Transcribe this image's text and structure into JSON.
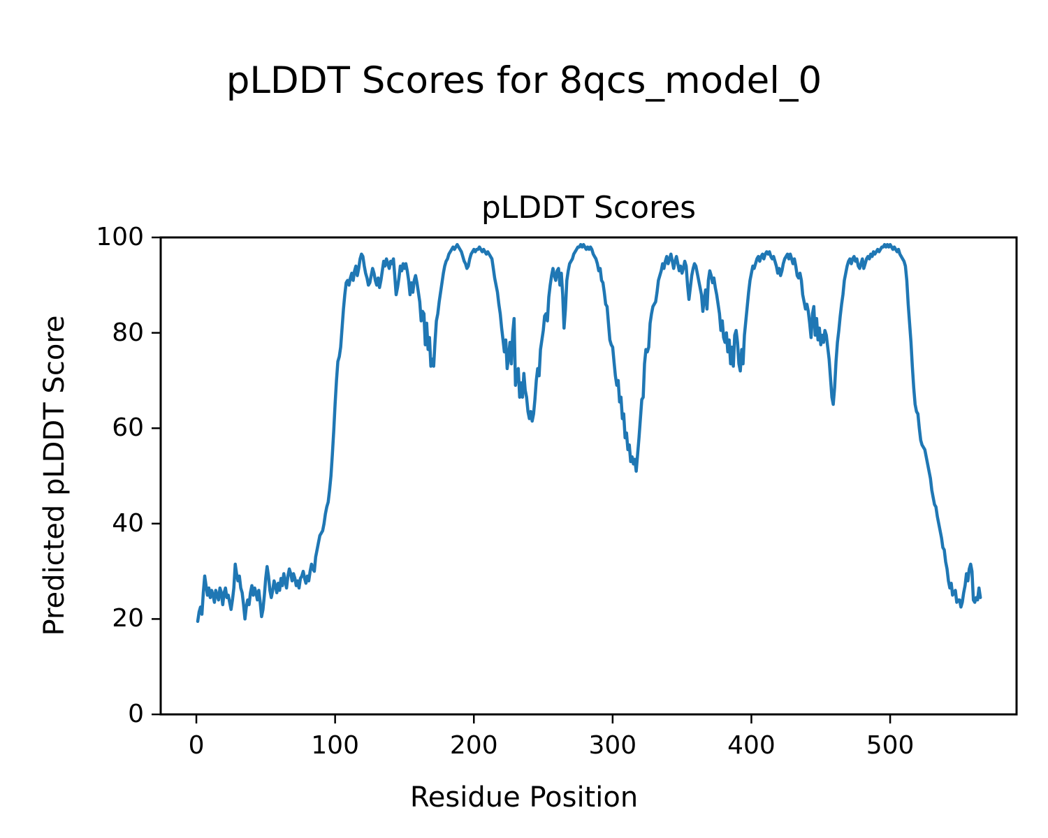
{
  "figure": {
    "suptitle": "pLDDT Scores for 8qcs_model_0",
    "axes_title": "pLDDT Scores",
    "xlabel": "Residue Position",
    "ylabel": "Predicted pLDDT Score"
  },
  "chart_data": {
    "type": "line",
    "title": "pLDDT Scores",
    "suptitle": "pLDDT Scores for 8qcs_model_0",
    "xlabel": "Residue Position",
    "ylabel": "Predicted pLDDT Score",
    "xlim": [
      -25.7,
      591.1
    ],
    "ylim": [
      0,
      100
    ],
    "x_ticks": [
      0,
      100,
      200,
      300,
      400,
      500
    ],
    "y_ticks": [
      0,
      20,
      40,
      60,
      80,
      100
    ],
    "grid": false,
    "legend": "none",
    "line_color": "#1f77b4",
    "series": [
      {
        "name": "pLDDT",
        "x_start": 1,
        "x_step": 1,
        "values": [
          19.5,
          21.5,
          22.5,
          21.0,
          25.5,
          29.0,
          27.0,
          25.0,
          26.5,
          24.5,
          26.0,
          25.0,
          23.5,
          26.0,
          25.0,
          24.0,
          26.5,
          25.5,
          23.0,
          25.5,
          26.5,
          24.5,
          25.0,
          23.5,
          22.0,
          24.0,
          26.5,
          31.5,
          29.5,
          28.0,
          29.0,
          26.5,
          25.5,
          23.0,
          20.0,
          22.5,
          24.0,
          23.0,
          25.5,
          27.0,
          25.0,
          26.5,
          25.5,
          24.0,
          26.0,
          23.5,
          20.5,
          22.0,
          25.0,
          28.5,
          31.0,
          29.0,
          26.0,
          24.5,
          26.0,
          28.0,
          27.0,
          25.5,
          27.5,
          26.0,
          28.5,
          27.0,
          29.5,
          28.0,
          26.5,
          29.0,
          30.5,
          29.5,
          28.0,
          29.5,
          28.5,
          27.0,
          28.0,
          26.5,
          28.5,
          29.0,
          30.0,
          28.5,
          27.5,
          29.0,
          28.0,
          30.0,
          31.5,
          30.5,
          30.0,
          33.0,
          34.5,
          36.0,
          37.5,
          38.0,
          38.5,
          40.0,
          42.0,
          43.5,
          44.5,
          47.0,
          50.0,
          54.5,
          59.5,
          65.0,
          70.0,
          74.0,
          75.0,
          77.0,
          81.0,
          85.0,
          88.0,
          90.5,
          91.0,
          90.0,
          91.5,
          92.5,
          91.0,
          93.0,
          94.0,
          92.0,
          93.5,
          95.5,
          96.5,
          96.0,
          94.0,
          92.5,
          91.5,
          90.0,
          90.5,
          92.0,
          93.5,
          92.5,
          91.0,
          90.0,
          91.5,
          89.5,
          91.0,
          93.0,
          95.0,
          94.0,
          95.5,
          94.5,
          93.5,
          95.0,
          94.5,
          95.5,
          92.0,
          88.0,
          89.5,
          91.5,
          94.0,
          93.0,
          94.5,
          93.5,
          94.5,
          93.0,
          91.0,
          88.0,
          90.5,
          88.5,
          91.0,
          92.0,
          90.5,
          88.5,
          86.5,
          82.5,
          84.5,
          84.0,
          77.5,
          82.0,
          76.5,
          79.0,
          73.0,
          74.5,
          73.0,
          78.0,
          82.5,
          84.0,
          86.5,
          88.5,
          90.5,
          92.5,
          94.0,
          95.0,
          95.5,
          96.5,
          97.0,
          97.5,
          98.0,
          97.5,
          98.0,
          98.5,
          98.0,
          97.5,
          97.0,
          96.0,
          95.0,
          94.5,
          93.5,
          94.0,
          95.5,
          96.5,
          97.0,
          97.5,
          97.0,
          97.5,
          97.5,
          98.0,
          97.5,
          97.0,
          97.5,
          97.0,
          96.5,
          97.0,
          96.5,
          96.0,
          95.5,
          93.5,
          91.5,
          90.0,
          88.5,
          86.0,
          84.0,
          81.0,
          78.5,
          76.0,
          78.5,
          72.5,
          75.0,
          78.0,
          73.5,
          80.0,
          83.0,
          69.0,
          71.5,
          72.5,
          66.5,
          69.5,
          66.5,
          71.5,
          68.0,
          66.5,
          63.5,
          62.0,
          63.5,
          61.5,
          63.0,
          66.0,
          70.0,
          72.5,
          71.0,
          76.5,
          78.5,
          80.5,
          83.5,
          84.0,
          82.5,
          87.5,
          90.0,
          92.0,
          93.5,
          92.0,
          91.0,
          93.0,
          93.5,
          90.0,
          92.5,
          88.0,
          81.0,
          85.0,
          91.0,
          93.0,
          94.5,
          95.0,
          95.5,
          96.5,
          97.0,
          97.5,
          98.0,
          98.0,
          98.5,
          98.0,
          98.5,
          98.0,
          97.5,
          98.0,
          97.5,
          98.0,
          97.5,
          96.5,
          96.0,
          95.5,
          94.5,
          93.0,
          93.5,
          91.0,
          90.5,
          88.5,
          86.0,
          85.5,
          82.0,
          78.5,
          77.5,
          77.0,
          74.0,
          71.0,
          69.0,
          70.0,
          65.5,
          66.5,
          62.0,
          63.0,
          58.0,
          59.0,
          55.5,
          56.5,
          53.0,
          54.0,
          52.5,
          53.5,
          51.0,
          54.5,
          58.0,
          62.0,
          66.0,
          66.5,
          73.5,
          76.5,
          76.0,
          77.0,
          82.0,
          84.0,
          85.5,
          86.0,
          86.5,
          88.5,
          91.0,
          92.0,
          93.0,
          94.5,
          93.5,
          95.0,
          96.0,
          94.5,
          95.5,
          96.5,
          95.0,
          93.5,
          95.0,
          96.0,
          94.5,
          93.0,
          94.0,
          92.5,
          93.5,
          95.0,
          94.0,
          90.0,
          87.0,
          89.5,
          92.0,
          93.5,
          94.5,
          94.0,
          92.5,
          91.0,
          89.5,
          88.0,
          84.5,
          87.0,
          89.0,
          85.0,
          91.0,
          93.0,
          92.0,
          90.5,
          91.5,
          89.5,
          88.0,
          86.0,
          84.0,
          80.5,
          82.5,
          79.0,
          78.0,
          80.0,
          76.0,
          78.5,
          73.5,
          77.0,
          73.0,
          79.5,
          80.5,
          78.0,
          73.5,
          72.0,
          76.5,
          73.5,
          79.5,
          82.5,
          85.5,
          88.5,
          91.0,
          92.5,
          94.0,
          93.5,
          94.5,
          95.5,
          96.0,
          95.0,
          96.0,
          96.5,
          95.5,
          96.5,
          97.0,
          96.5,
          97.0,
          96.0,
          95.5,
          96.0,
          95.0,
          94.0,
          92.5,
          93.5,
          92.0,
          93.0,
          94.5,
          95.5,
          96.0,
          96.5,
          95.5,
          96.5,
          95.5,
          94.5,
          95.5,
          94.0,
          92.0,
          91.5,
          92.5,
          91.0,
          88.0,
          86.5,
          85.0,
          86.0,
          84.5,
          82.0,
          79.0,
          84.0,
          85.5,
          79.5,
          83.0,
          78.5,
          81.0,
          77.5,
          79.5,
          78.0,
          80.5,
          79.5,
          77.0,
          74.5,
          70.5,
          66.5,
          65.0,
          68.5,
          74.0,
          78.0,
          80.5,
          83.5,
          86.0,
          88.0,
          91.0,
          92.5,
          94.0,
          95.0,
          95.5,
          94.5,
          95.5,
          96.0,
          95.0,
          95.5,
          94.0,
          93.5,
          94.5,
          95.5,
          93.5,
          94.5,
          95.5,
          96.0,
          95.5,
          96.5,
          96.0,
          97.0,
          96.5,
          97.0,
          97.5,
          97.0,
          97.5,
          98.0,
          98.0,
          98.5,
          98.0,
          98.5,
          98.0,
          98.5,
          98.0,
          97.5,
          98.0,
          97.5,
          97.0,
          97.5,
          96.5,
          96.0,
          95.5,
          95.0,
          94.0,
          91.0,
          86.0,
          82.0,
          78.0,
          73.0,
          68.5,
          65.0,
          63.5,
          63.0,
          60.0,
          57.5,
          56.5,
          56.0,
          55.5,
          54.0,
          52.5,
          51.0,
          49.5,
          47.0,
          45.5,
          44.0,
          43.5,
          41.5,
          40.0,
          38.5,
          37.0,
          35.0,
          34.5,
          32.0,
          30.5,
          28.0,
          26.5,
          27.5,
          25.0,
          25.5,
          26.0,
          23.5,
          24.0,
          24.0,
          22.5,
          23.5,
          25.5,
          27.0,
          29.5,
          28.0,
          30.5,
          31.5,
          30.0,
          24.0,
          23.5,
          24.5,
          24.0,
          26.5,
          24.5
        ]
      }
    ]
  }
}
